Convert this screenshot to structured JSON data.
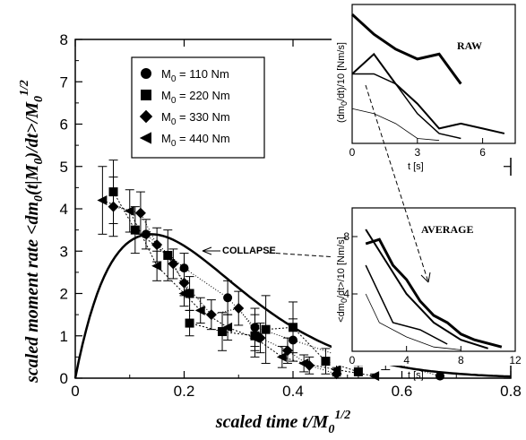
{
  "chart_data": {
    "type": "scatter",
    "xlabel": "scaled time t/M",
    "xlabel_sub": "0",
    "xlabel_sup": "1/2",
    "ylabel": "scaled moment rate <dm",
    "ylabel_sub1": "0",
    "ylabel_mid": "(t|M",
    "ylabel_sub2": "0",
    "ylabel_end": ")/dt>/M",
    "ylabel_sub3": "0",
    "ylabel_sup": "1/2",
    "xlim": [
      0,
      0.8
    ],
    "ylim": [
      0,
      8
    ],
    "xticks": [
      "0",
      "0.2",
      "0.4",
      "0.6",
      "0.8"
    ],
    "yticks": [
      "0",
      "1",
      "2",
      "3",
      "4",
      "5",
      "6",
      "7",
      "8"
    ],
    "annotation": "COLLAPSE",
    "legend": [
      {
        "marker": "circle",
        "prefix": "M",
        "sub": "0",
        "text": " = 110 Nm"
      },
      {
        "marker": "square",
        "prefix": "M",
        "sub": "0",
        "text": " = 220 Nm"
      },
      {
        "marker": "diamond",
        "prefix": "M",
        "sub": "0",
        "text": " = 330 Nm"
      },
      {
        "marker": "triangle-left",
        "prefix": "M",
        "sub": "0",
        "text": " = 440 Nm"
      }
    ],
    "series": [
      {
        "marker": "circle",
        "points": [
          [
            0.13,
            3.4
          ],
          [
            0.2,
            2.6
          ],
          [
            0.28,
            1.9
          ],
          [
            0.33,
            1.2
          ],
          [
            0.4,
            0.9
          ],
          [
            0.48,
            0.55
          ],
          [
            0.57,
            0.4
          ],
          [
            0.67,
            0.05
          ]
        ],
        "errors": [
          0.35,
          0.35,
          0.4,
          0.45,
          0.5,
          0.3,
          0.2,
          0.0
        ]
      },
      {
        "marker": "square",
        "points": [
          [
            0.07,
            4.4
          ],
          [
            0.11,
            3.5
          ],
          [
            0.17,
            2.9
          ],
          [
            0.21,
            2.0
          ],
          [
            0.21,
            1.3
          ],
          [
            0.27,
            1.1
          ],
          [
            0.33,
            1.0
          ],
          [
            0.35,
            1.15
          ],
          [
            0.4,
            1.2
          ],
          [
            0.46,
            0.4
          ],
          [
            0.52,
            0.15
          ]
        ],
        "errors": [
          0.75,
          0.55,
          0.6,
          0.4,
          0.3,
          0.45,
          0.5,
          0.8,
          0.6,
          0.3,
          0.15
        ]
      },
      {
        "marker": "diamond",
        "points": [
          [
            0.07,
            4.05
          ],
          [
            0.12,
            3.9
          ],
          [
            0.15,
            3.15
          ],
          [
            0.18,
            2.7
          ],
          [
            0.2,
            2.25
          ],
          [
            0.25,
            1.5
          ],
          [
            0.3,
            1.65
          ],
          [
            0.34,
            0.95
          ],
          [
            0.39,
            0.65
          ],
          [
            0.43,
            0.3
          ],
          [
            0.48,
            0.1
          ]
        ],
        "errors": [
          0.7,
          0.5,
          0.4,
          0.35,
          0.3,
          0.35,
          0.4,
          0.35,
          0.3,
          0.2,
          0.1
        ]
      },
      {
        "marker": "triangle-left",
        "points": [
          [
            0.05,
            4.2
          ],
          [
            0.1,
            3.95
          ],
          [
            0.15,
            2.65
          ],
          [
            0.2,
            2.0
          ],
          [
            0.23,
            1.6
          ],
          [
            0.28,
            1.2
          ],
          [
            0.33,
            0.95
          ],
          [
            0.38,
            0.5
          ],
          [
            0.42,
            0.35
          ],
          [
            0.48,
            0.2
          ],
          [
            0.55,
            0.05
          ]
        ],
        "errors": [
          0.8,
          0.5,
          0.35,
          0.3,
          0.3,
          0.3,
          0.3,
          0.25,
          0.2,
          0.15,
          0.05
        ]
      }
    ],
    "collapse_curve": {
      "peak_t": 0.14,
      "peak_value": 3.4,
      "end_t": 0.56
    },
    "inset_raw": {
      "title": "RAW",
      "ylabel": "(dm",
      "ylabel_sub": "0",
      "ylabel_end": "/dt)/10 [Nm/s]",
      "xlabel": "t [s]",
      "xlim": [
        0,
        7.5
      ],
      "ylim": [
        0,
        14
      ],
      "xticks": [
        "0",
        "3",
        "6"
      ],
      "series": [
        {
          "width": 3.0,
          "points": [
            [
              0,
              13
            ],
            [
              1,
              11
            ],
            [
              2,
              9.5
            ],
            [
              3,
              8.5
            ],
            [
              4,
              9
            ],
            [
              5,
              6
            ]
          ]
        },
        {
          "width": 2.0,
          "points": [
            [
              0,
              7
            ],
            [
              1,
              9
            ],
            [
              2,
              6
            ],
            [
              3,
              4
            ],
            [
              4,
              1.5
            ],
            [
              5,
              2
            ],
            [
              6,
              1.5
            ],
            [
              7,
              1
            ]
          ]
        },
        {
          "width": 1.5,
          "points": [
            [
              0,
              7
            ],
            [
              1,
              7
            ],
            [
              2,
              6
            ],
            [
              3,
              3
            ],
            [
              4,
              1
            ],
            [
              5,
              0.5
            ]
          ]
        },
        {
          "width": 0.8,
          "points": [
            [
              0,
              3.5
            ],
            [
              1,
              3
            ],
            [
              2,
              2
            ],
            [
              3,
              0.5
            ],
            [
              4,
              0.3
            ]
          ]
        }
      ]
    },
    "inset_avg": {
      "title": "AVERAGE",
      "ylabel": "<dm",
      "ylabel_sub": "0",
      "ylabel_end": "/dt>/10 [Nm/s]",
      "xlabel": "t [s]",
      "xlim": [
        0,
        12
      ],
      "ylim": [
        0,
        10
      ],
      "xticks": [
        "0",
        "4",
        "8",
        "12"
      ],
      "yticks": [
        "4",
        "8"
      ],
      "series": [
        {
          "width": 3.0,
          "points": [
            [
              1,
              7.5
            ],
            [
              2,
              7.8
            ],
            [
              3,
              6
            ],
            [
              4,
              5
            ],
            [
              5,
              3.5
            ],
            [
              6,
              2.5
            ],
            [
              7,
              2
            ],
            [
              8,
              1.2
            ],
            [
              9,
              0.8
            ],
            [
              11,
              0.3
            ]
          ]
        },
        {
          "width": 2.0,
          "points": [
            [
              1,
              8.5
            ],
            [
              2,
              7
            ],
            [
              4,
              4
            ],
            [
              6,
              2
            ],
            [
              8,
              0.8
            ],
            [
              10,
              0.2
            ]
          ]
        },
        {
          "width": 1.5,
          "points": [
            [
              1,
              6
            ],
            [
              2,
              4
            ],
            [
              3,
              2
            ],
            [
              5,
              1.5
            ],
            [
              7,
              0.5
            ]
          ]
        },
        {
          "width": 0.8,
          "points": [
            [
              1,
              4
            ],
            [
              2,
              2
            ],
            [
              4,
              1
            ],
            [
              6,
              0.3
            ],
            [
              8,
              0.1
            ]
          ]
        }
      ]
    }
  }
}
